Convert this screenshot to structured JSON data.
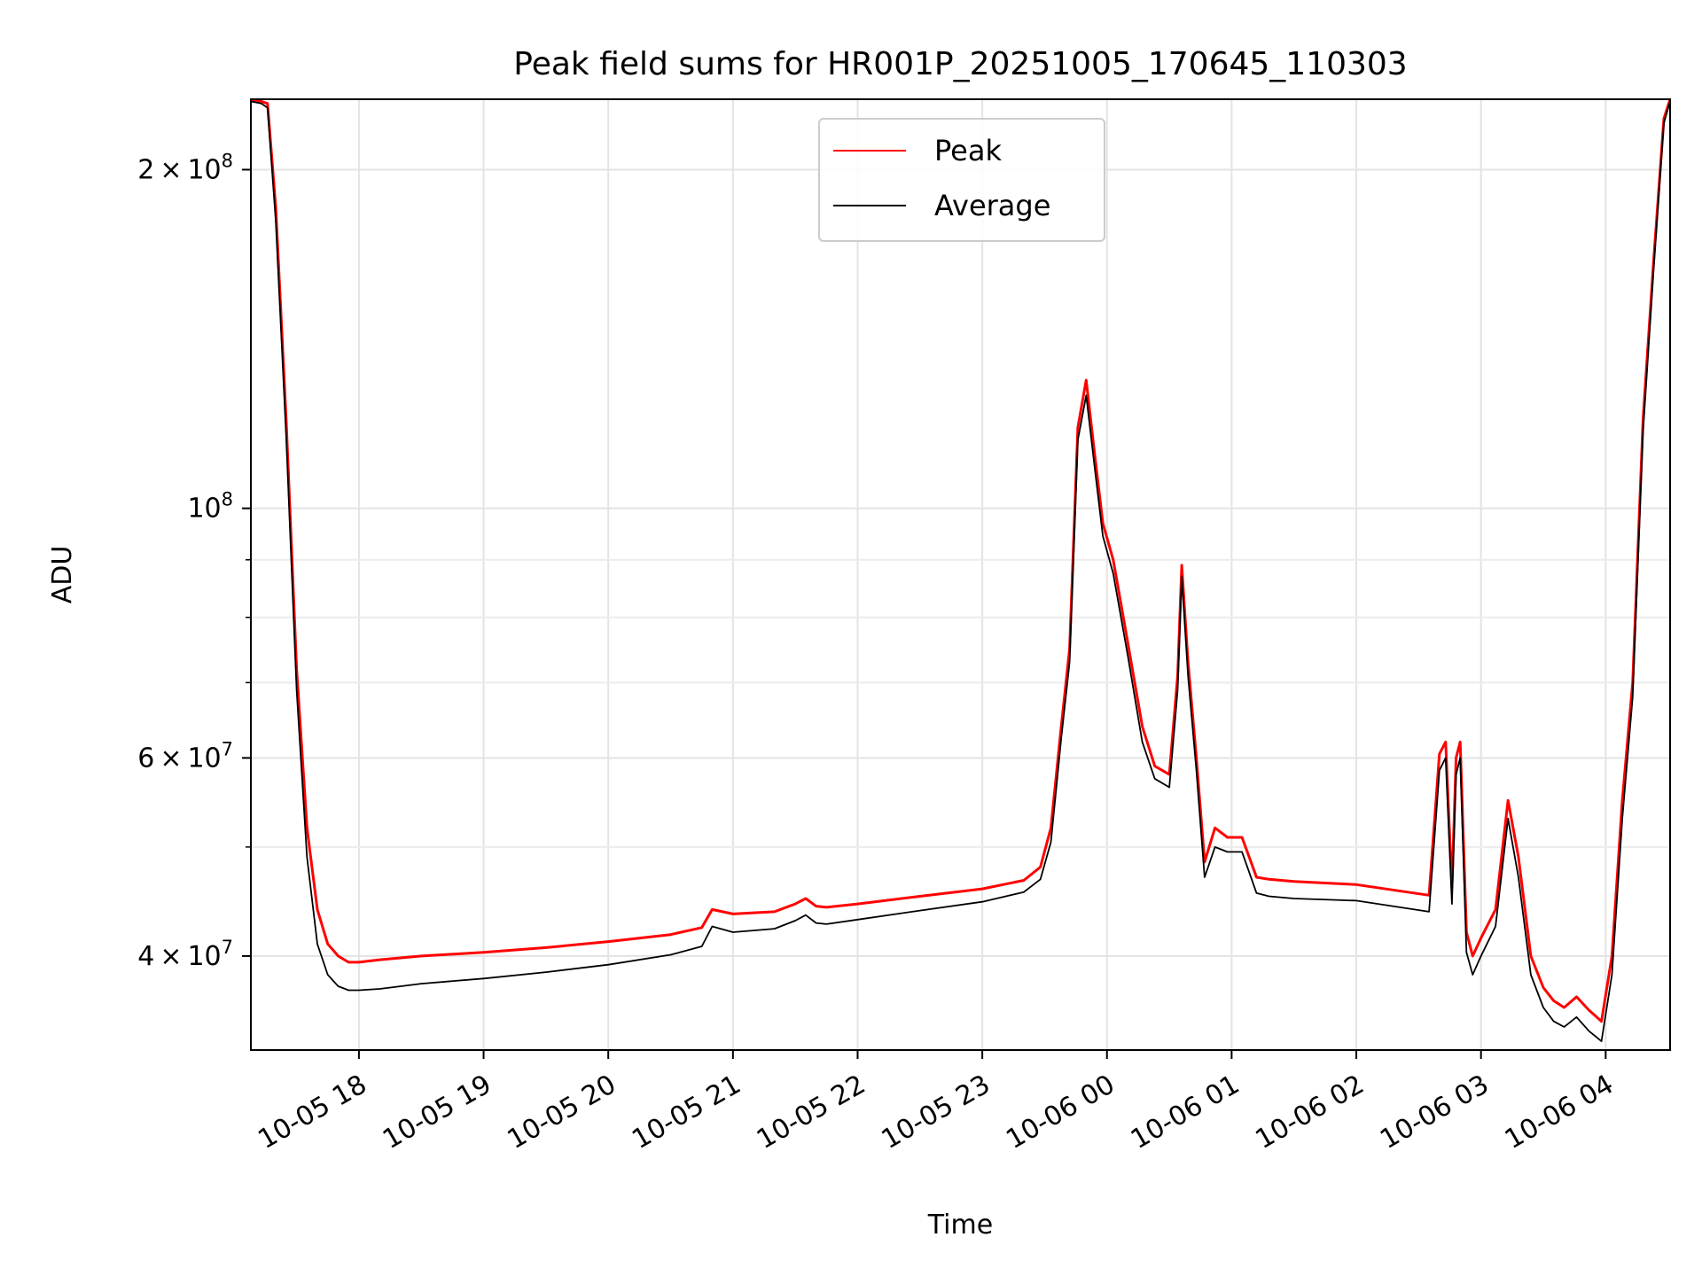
{
  "chart_data": {
    "type": "line",
    "title": "Peak field sums for HR001P_20251005_170645_110303",
    "xlabel": "Time",
    "ylabel": "ADU",
    "y_scale": "log",
    "ylim": [
      33000000,
      231000000
    ],
    "xlim": [
      "2025-10-05 17:08",
      "2025-10-06 04:31"
    ],
    "grid": true,
    "legend_position": "upper center",
    "x_ticks": [
      "2025-10-05 18:00",
      "2025-10-05 19:00",
      "2025-10-05 20:00",
      "2025-10-05 21:00",
      "2025-10-05 22:00",
      "2025-10-05 23:00",
      "2025-10-06 00:00",
      "2025-10-06 01:00",
      "2025-10-06 02:00",
      "2025-10-06 03:00",
      "2025-10-06 04:00"
    ],
    "x_tick_labels": [
      "10-05 18",
      "10-05 19",
      "10-05 20",
      "10-05 21",
      "10-05 22",
      "10-05 23",
      "10-06 00",
      "10-06 01",
      "10-06 02",
      "10-06 03",
      "10-06 04"
    ],
    "y_major_ticks": [
      {
        "value": 40000000,
        "mantissa": "4",
        "exponent": "7"
      },
      {
        "value": 60000000,
        "mantissa": "6",
        "exponent": "7"
      },
      {
        "value": 100000000,
        "mantissa": "",
        "exponent": "8"
      },
      {
        "value": 200000000,
        "mantissa": "2",
        "exponent": "8"
      }
    ],
    "y_minor_ticks": [
      50000000,
      70000000,
      80000000,
      90000000
    ],
    "series": [
      {
        "name": "Peak",
        "color": "#ff0000",
        "x": [
          "2025-10-05 17:08",
          "2025-10-05 17:13",
          "2025-10-05 17:16",
          "2025-10-05 17:20",
          "2025-10-05 17:25",
          "2025-10-05 17:30",
          "2025-10-05 17:35",
          "2025-10-05 17:40",
          "2025-10-05 17:45",
          "2025-10-05 17:50",
          "2025-10-05 17:55",
          "2025-10-05 18:00",
          "2025-10-05 18:10",
          "2025-10-05 18:30",
          "2025-10-05 19:00",
          "2025-10-05 19:30",
          "2025-10-05 20:00",
          "2025-10-05 20:30",
          "2025-10-05 20:45",
          "2025-10-05 20:50",
          "2025-10-05 21:00",
          "2025-10-05 21:20",
          "2025-10-05 21:30",
          "2025-10-05 21:35",
          "2025-10-05 21:40",
          "2025-10-05 21:45",
          "2025-10-05 22:00",
          "2025-10-05 22:30",
          "2025-10-05 23:00",
          "2025-10-05 23:20",
          "2025-10-05 23:28",
          "2025-10-05 23:33",
          "2025-10-05 23:38",
          "2025-10-05 23:42",
          "2025-10-05 23:46",
          "2025-10-05 23:50",
          "2025-10-05 23:54",
          "2025-10-05 23:58",
          "2025-10-06 00:03",
          "2025-10-06 00:10",
          "2025-10-06 00:17",
          "2025-10-06 00:23",
          "2025-10-06 00:30",
          "2025-10-06 00:34",
          "2025-10-06 00:36",
          "2025-10-06 00:39",
          "2025-10-06 00:43",
          "2025-10-06 00:47",
          "2025-10-06 00:52",
          "2025-10-06 00:58",
          "2025-10-06 01:05",
          "2025-10-06 01:12",
          "2025-10-06 01:18",
          "2025-10-06 01:30",
          "2025-10-06 02:00",
          "2025-10-06 02:35",
          "2025-10-06 02:40",
          "2025-10-06 02:43",
          "2025-10-06 02:46",
          "2025-10-06 02:48",
          "2025-10-06 02:50",
          "2025-10-06 02:53",
          "2025-10-06 02:56",
          "2025-10-06 03:00",
          "2025-10-06 03:07",
          "2025-10-06 03:13",
          "2025-10-06 03:18",
          "2025-10-06 03:24",
          "2025-10-06 03:30",
          "2025-10-06 03:35",
          "2025-10-06 03:40",
          "2025-10-06 03:46",
          "2025-10-06 03:52",
          "2025-10-06 03:58",
          "2025-10-06 04:03",
          "2025-10-06 04:08",
          "2025-10-06 04:13",
          "2025-10-06 04:18",
          "2025-10-06 04:23",
          "2025-10-06 04:28",
          "2025-10-06 04:31"
        ],
        "y": [
          231000000,
          230000000,
          229000000,
          185000000,
          120000000,
          72000000,
          52000000,
          44000000,
          41000000,
          40000000,
          39500000,
          39500000,
          39700000,
          40000000,
          40300000,
          40700000,
          41200000,
          41800000,
          42400000,
          44000000,
          43600000,
          43800000,
          44500000,
          45000000,
          44300000,
          44200000,
          44500000,
          45200000,
          45900000,
          46700000,
          48000000,
          52000000,
          64000000,
          75000000,
          118000000,
          130000000,
          112000000,
          97000000,
          90000000,
          76000000,
          64000000,
          59000000,
          58000000,
          71000000,
          89000000,
          73000000,
          60000000,
          48500000,
          52000000,
          51000000,
          51000000,
          47000000,
          46800000,
          46600000,
          46300000,
          45300000,
          60500000,
          62000000,
          46000000,
          60000000,
          62000000,
          42000000,
          40000000,
          41500000,
          44000000,
          55000000,
          49000000,
          40000000,
          37500000,
          36500000,
          36000000,
          36800000,
          35800000,
          35000000,
          40000000,
          55000000,
          70000000,
          120000000,
          165000000,
          222000000,
          231000000
        ]
      },
      {
        "name": "Average",
        "color": "#000000",
        "x": [
          "2025-10-05 17:08",
          "2025-10-05 17:13",
          "2025-10-05 17:16",
          "2025-10-05 17:20",
          "2025-10-05 17:25",
          "2025-10-05 17:30",
          "2025-10-05 17:35",
          "2025-10-05 17:40",
          "2025-10-05 17:45",
          "2025-10-05 17:50",
          "2025-10-05 17:55",
          "2025-10-05 18:00",
          "2025-10-05 18:10",
          "2025-10-05 18:30",
          "2025-10-05 19:00",
          "2025-10-05 19:30",
          "2025-10-05 20:00",
          "2025-10-05 20:30",
          "2025-10-05 20:45",
          "2025-10-05 20:50",
          "2025-10-05 21:00",
          "2025-10-05 21:20",
          "2025-10-05 21:30",
          "2025-10-05 21:35",
          "2025-10-05 21:40",
          "2025-10-05 21:45",
          "2025-10-05 22:00",
          "2025-10-05 22:30",
          "2025-10-05 23:00",
          "2025-10-05 23:20",
          "2025-10-05 23:28",
          "2025-10-05 23:33",
          "2025-10-05 23:38",
          "2025-10-05 23:42",
          "2025-10-05 23:46",
          "2025-10-05 23:50",
          "2025-10-05 23:54",
          "2025-10-05 23:58",
          "2025-10-06 00:03",
          "2025-10-06 00:10",
          "2025-10-06 00:17",
          "2025-10-06 00:23",
          "2025-10-06 00:30",
          "2025-10-06 00:34",
          "2025-10-06 00:36",
          "2025-10-06 00:39",
          "2025-10-06 00:43",
          "2025-10-06 00:47",
          "2025-10-06 00:52",
          "2025-10-06 00:58",
          "2025-10-06 01:05",
          "2025-10-06 01:12",
          "2025-10-06 01:18",
          "2025-10-06 01:30",
          "2025-10-06 02:00",
          "2025-10-06 02:35",
          "2025-10-06 02:40",
          "2025-10-06 02:43",
          "2025-10-06 02:46",
          "2025-10-06 02:48",
          "2025-10-06 02:50",
          "2025-10-06 02:53",
          "2025-10-06 02:56",
          "2025-10-06 03:00",
          "2025-10-06 03:07",
          "2025-10-06 03:13",
          "2025-10-06 03:18",
          "2025-10-06 03:24",
          "2025-10-06 03:30",
          "2025-10-06 03:35",
          "2025-10-06 03:40",
          "2025-10-06 03:46",
          "2025-10-06 03:52",
          "2025-10-06 03:58",
          "2025-10-06 04:03",
          "2025-10-06 04:08",
          "2025-10-06 04:13",
          "2025-10-06 04:18",
          "2025-10-06 04:23",
          "2025-10-06 04:28",
          "2025-10-06 04:31"
        ],
        "y": [
          230000000,
          229000000,
          227000000,
          180000000,
          116000000,
          69000000,
          49000000,
          41000000,
          38500000,
          37600000,
          37300000,
          37300000,
          37400000,
          37800000,
          38200000,
          38700000,
          39300000,
          40100000,
          40800000,
          42500000,
          42000000,
          42300000,
          43000000,
          43500000,
          42800000,
          42700000,
          43100000,
          43900000,
          44700000,
          45600000,
          46800000,
          50500000,
          62500000,
          73000000,
          115000000,
          126000000,
          109000000,
          94500000,
          87500000,
          74000000,
          62000000,
          57500000,
          56500000,
          69000000,
          87000000,
          71000000,
          58500000,
          47000000,
          50000000,
          49500000,
          49500000,
          45500000,
          45200000,
          45000000,
          44800000,
          43800000,
          58500000,
          60000000,
          44500000,
          58000000,
          60000000,
          40300000,
          38500000,
          40000000,
          42500000,
          53000000,
          47000000,
          38500000,
          36000000,
          35000000,
          34600000,
          35300000,
          34300000,
          33600000,
          38500000,
          53000000,
          68000000,
          117000000,
          162000000,
          220000000,
          230000000
        ]
      }
    ]
  }
}
